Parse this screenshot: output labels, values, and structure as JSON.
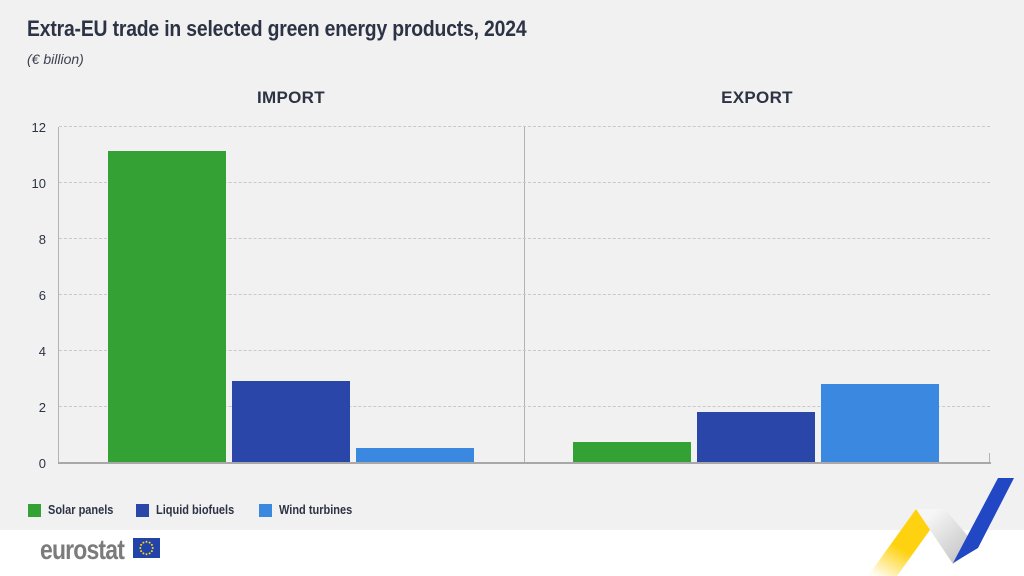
{
  "header": {
    "title": "Extra-EU trade in selected green energy products, 2024",
    "subtitle": "(€ billion)"
  },
  "chart_data": {
    "type": "bar",
    "title": "Extra-EU trade in selected green energy products, 2024",
    "unit_label": "(€ billion)",
    "groups": [
      "IMPORT",
      "EXPORT"
    ],
    "categories": [
      "Solar panels",
      "Liquid biofuels",
      "Wind turbines"
    ],
    "series": [
      {
        "name": "Solar panels",
        "color": "#34a134",
        "values": {
          "import": 11.1,
          "export": 0.7
        }
      },
      {
        "name": "Liquid biofuels",
        "color": "#2a46a8",
        "values": {
          "import": 2.9,
          "export": 1.8
        }
      },
      {
        "name": "Wind turbines",
        "color": "#3b88e0",
        "values": {
          "import": 0.5,
          "export": 2.8
        }
      }
    ],
    "yticks": [
      0,
      2,
      4,
      6,
      8,
      10,
      12
    ],
    "ylim": [
      0,
      12
    ],
    "grid": "horizontal-dashed",
    "legend_position": "bottom-left"
  },
  "legend": {
    "items": [
      {
        "label": "Solar panels",
        "color": "#34a134"
      },
      {
        "label": "Liquid biofuels",
        "color": "#2a46a8"
      },
      {
        "label": "Wind turbines",
        "color": "#3b88e0"
      }
    ]
  },
  "footer": {
    "brand": "eurostat"
  },
  "decor": {
    "ribbon_yellow": "#ffd211",
    "ribbon_blue": "#2147c5",
    "flag_blue": "#2243a8",
    "flag_star_yellow": "#ffd617"
  }
}
